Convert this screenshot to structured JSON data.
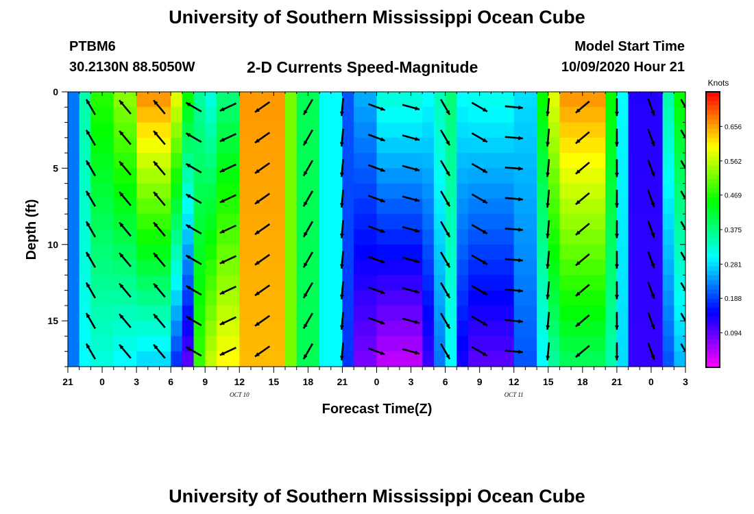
{
  "page": {
    "title": "University of Southern Mississippi Ocean Cube",
    "footer_title": "University of Southern Mississippi Ocean Cube",
    "station_id": "PTBM6",
    "station_coords": "30.2130N 88.5050W",
    "chart_title": "2-D Currents Speed-Magnitude",
    "model_start_label": "Model Start Time",
    "model_start_value": "10/09/2020 Hour 21"
  },
  "chart_data": {
    "type": "heatmap",
    "title": "2-D Currents Speed-Magnitude",
    "xlabel": "Forecast Time(Z)",
    "ylabel": "Depth (ft)",
    "xlim": [
      0,
      54
    ],
    "ylim": [
      0,
      18
    ],
    "x_ticks": [
      {
        "value": 0,
        "label": "21"
      },
      {
        "value": 3,
        "label": "0"
      },
      {
        "value": 6,
        "label": "3"
      },
      {
        "value": 9,
        "label": "6"
      },
      {
        "value": 12,
        "label": "9"
      },
      {
        "value": 15,
        "label": "12"
      },
      {
        "value": 18,
        "label": "15"
      },
      {
        "value": 21,
        "label": "18"
      },
      {
        "value": 24,
        "label": "21"
      },
      {
        "value": 27,
        "label": "0"
      },
      {
        "value": 30,
        "label": "3"
      },
      {
        "value": 33,
        "label": "6"
      },
      {
        "value": 36,
        "label": "9"
      },
      {
        "value": 39,
        "label": "12"
      },
      {
        "value": 42,
        "label": "15"
      },
      {
        "value": 45,
        "label": "18"
      },
      {
        "value": 48,
        "label": "21"
      },
      {
        "value": 51,
        "label": "0"
      },
      {
        "value": 54,
        "label": "3"
      }
    ],
    "date_labels": [
      {
        "value": 15,
        "label": "OCT 10"
      },
      {
        "value": 39,
        "label": "OCT 11"
      }
    ],
    "y_ticks": [
      {
        "value": 0,
        "label": "0"
      },
      {
        "value": 5,
        "label": "5"
      },
      {
        "value": 10,
        "label": "10"
      },
      {
        "value": 15,
        "label": "15"
      }
    ],
    "colorbar": {
      "unit": "Knots",
      "tick_labels": [
        "0.656",
        "0.562",
        "0.469",
        "0.375",
        "0.281",
        "0.188",
        "0.094"
      ],
      "tick_values": [
        0.656,
        0.562,
        0.469,
        0.375,
        0.281,
        0.188,
        0.094
      ],
      "range": [
        0.0,
        0.75
      ]
    },
    "speed_columns": [
      {
        "hours": [
          0,
          1
        ],
        "top": 0.22,
        "bottom": 0.22
      },
      {
        "hours": [
          1,
          2
        ],
        "top": 0.35,
        "bottom": 0.3
      },
      {
        "hours": [
          2,
          4
        ],
        "top": 0.47,
        "bottom": 0.32
      },
      {
        "hours": [
          4,
          6
        ],
        "top": 0.53,
        "bottom": 0.3
      },
      {
        "hours": [
          6,
          9
        ],
        "top": 0.66,
        "bottom": 0.28
      },
      {
        "hours": [
          9,
          10
        ],
        "top": 0.58,
        "bottom": 0.18
      },
      {
        "hours": [
          10,
          11
        ],
        "top": 0.45,
        "bottom": 0.1
      },
      {
        "hours": [
          11,
          12
        ],
        "top": 0.36,
        "bottom": 0.48
      },
      {
        "hours": [
          12,
          13
        ],
        "top": 0.32,
        "bottom": 0.56
      },
      {
        "hours": [
          13,
          15
        ],
        "top": 0.38,
        "bottom": 0.6
      },
      {
        "hours": [
          15,
          19
        ],
        "top": 0.66,
        "bottom": 0.64
      },
      {
        "hours": [
          19,
          20
        ],
        "top": 0.52,
        "bottom": 0.52
      },
      {
        "hours": [
          20,
          22
        ],
        "top": 0.4,
        "bottom": 0.4
      },
      {
        "hours": [
          22,
          24
        ],
        "top": 0.3,
        "bottom": 0.3
      },
      {
        "hours": [
          24,
          25
        ],
        "top": 0.2,
        "bottom": 0.18
      },
      {
        "hours": [
          25,
          27
        ],
        "top": 0.25,
        "bottom": 0.08
      },
      {
        "hours": [
          27,
          31
        ],
        "top": 0.32,
        "bottom": 0.04
      },
      {
        "hours": [
          31,
          32
        ],
        "top": 0.3,
        "bottom": 0.12
      },
      {
        "hours": [
          32,
          33
        ],
        "top": 0.34,
        "bottom": 0.22
      },
      {
        "hours": [
          33,
          34
        ],
        "top": 0.38,
        "bottom": 0.3
      },
      {
        "hours": [
          34,
          35
        ],
        "top": 0.3,
        "bottom": 0.14
      },
      {
        "hours": [
          35,
          39
        ],
        "top": 0.31,
        "bottom": 0.1
      },
      {
        "hours": [
          39,
          41
        ],
        "top": 0.28,
        "bottom": 0.2
      },
      {
        "hours": [
          41,
          42
        ],
        "top": 0.45,
        "bottom": 0.3
      },
      {
        "hours": [
          42,
          43
        ],
        "top": 0.58,
        "bottom": 0.36
      },
      {
        "hours": [
          43,
          47
        ],
        "top": 0.66,
        "bottom": 0.4
      },
      {
        "hours": [
          47,
          48
        ],
        "top": 0.45,
        "bottom": 0.35
      },
      {
        "hours": [
          48,
          49
        ],
        "top": 0.3,
        "bottom": 0.28
      },
      {
        "hours": [
          49,
          52
        ],
        "top": 0.13,
        "bottom": 0.12
      },
      {
        "hours": [
          52,
          53
        ],
        "top": 0.35,
        "bottom": 0.2
      },
      {
        "hours": [
          53,
          54
        ],
        "top": 0.45,
        "bottom": 0.26
      }
    ],
    "vectors": [
      {
        "hour": 2,
        "angle": 120
      },
      {
        "hour": 5,
        "angle": 130
      },
      {
        "hour": 8,
        "angle": 130
      },
      {
        "hour": 11,
        "angle": 150
      },
      {
        "hour": 14,
        "angle": 205
      },
      {
        "hour": 17,
        "angle": 215
      },
      {
        "hour": 21,
        "angle": 240
      },
      {
        "hour": 24,
        "angle": 265
      },
      {
        "hour": 27,
        "angle": 340
      },
      {
        "hour": 30,
        "angle": 345
      },
      {
        "hour": 33,
        "angle": 300
      },
      {
        "hour": 36,
        "angle": 330
      },
      {
        "hour": 39,
        "angle": 355
      },
      {
        "hour": 42,
        "angle": 265
      },
      {
        "hour": 45,
        "angle": 220
      },
      {
        "hour": 48,
        "angle": 270
      },
      {
        "hour": 51,
        "angle": 290
      },
      {
        "hour": 54,
        "angle": 300
      }
    ]
  }
}
